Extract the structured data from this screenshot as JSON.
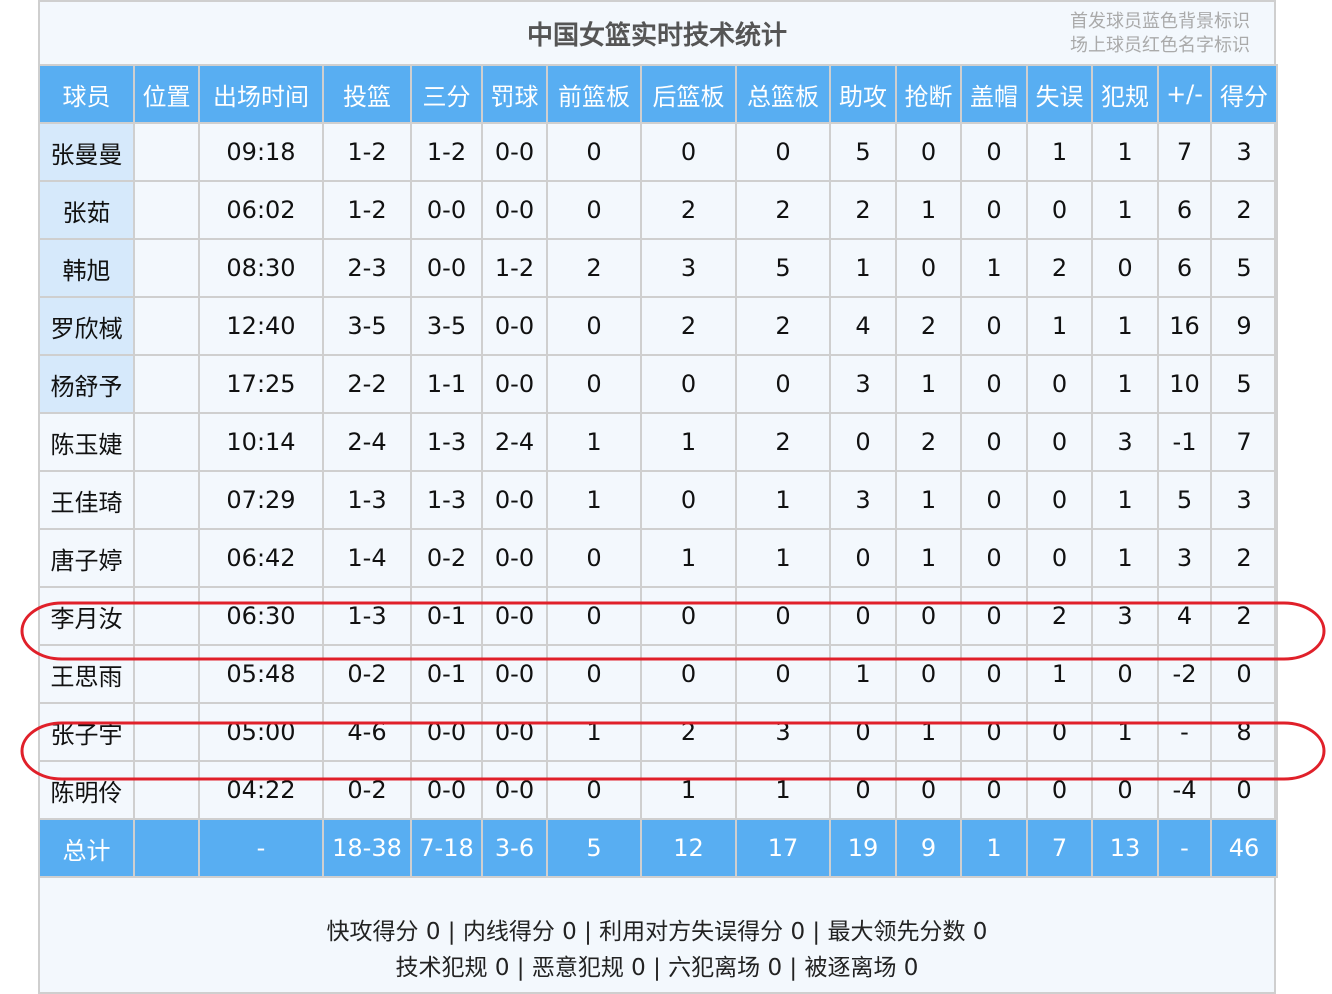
{
  "title": "中国女篮实时技术统计",
  "legend_note": [
    "首发球员蓝色背景标识",
    "场上球员红色名字标识"
  ],
  "colors": {
    "header_bg": "#58aef2",
    "starter_bg": "#d6e9fb",
    "highlight": "#e0202a"
  },
  "columns": [
    "球员",
    "位置",
    "出场时间",
    "投篮",
    "三分",
    "罚球",
    "前篮板",
    "后篮板",
    "总篮板",
    "助攻",
    "抢断",
    "盖帽",
    "失误",
    "犯规",
    "+/-",
    "得分"
  ],
  "rows": [
    {
      "starter": true,
      "cells": [
        "张曼曼",
        "",
        "09:18",
        "1-2",
        "1-2",
        "0-0",
        "0",
        "0",
        "0",
        "5",
        "0",
        "0",
        "1",
        "1",
        "7",
        "3"
      ]
    },
    {
      "starter": true,
      "cells": [
        "张茹",
        "",
        "06:02",
        "1-2",
        "0-0",
        "0-0",
        "0",
        "2",
        "2",
        "2",
        "1",
        "0",
        "0",
        "1",
        "6",
        "2"
      ]
    },
    {
      "starter": true,
      "cells": [
        "韩旭",
        "",
        "08:30",
        "2-3",
        "0-0",
        "1-2",
        "2",
        "3",
        "5",
        "1",
        "0",
        "1",
        "2",
        "0",
        "6",
        "5"
      ]
    },
    {
      "starter": true,
      "cells": [
        "罗欣棫",
        "",
        "12:40",
        "3-5",
        "3-5",
        "0-0",
        "0",
        "2",
        "2",
        "4",
        "2",
        "0",
        "1",
        "1",
        "16",
        "9"
      ]
    },
    {
      "starter": true,
      "cells": [
        "杨舒予",
        "",
        "17:25",
        "2-2",
        "1-1",
        "0-0",
        "0",
        "0",
        "0",
        "3",
        "1",
        "0",
        "0",
        "1",
        "10",
        "5"
      ]
    },
    {
      "starter": false,
      "cells": [
        "陈玉婕",
        "",
        "10:14",
        "2-4",
        "1-3",
        "2-4",
        "1",
        "1",
        "2",
        "0",
        "2",
        "0",
        "0",
        "3",
        "-1",
        "7"
      ]
    },
    {
      "starter": false,
      "cells": [
        "王佳琦",
        "",
        "07:29",
        "1-3",
        "1-3",
        "0-0",
        "1",
        "0",
        "1",
        "3",
        "1",
        "0",
        "0",
        "1",
        "5",
        "3"
      ]
    },
    {
      "starter": false,
      "cells": [
        "唐子婷",
        "",
        "06:42",
        "1-4",
        "0-2",
        "0-0",
        "0",
        "1",
        "1",
        "0",
        "1",
        "0",
        "0",
        "1",
        "3",
        "2"
      ]
    },
    {
      "starter": false,
      "highlighted": true,
      "cells": [
        "李月汝",
        "",
        "06:30",
        "1-3",
        "0-1",
        "0-0",
        "0",
        "0",
        "0",
        "0",
        "0",
        "0",
        "2",
        "3",
        "4",
        "2"
      ]
    },
    {
      "starter": false,
      "cells": [
        "王思雨",
        "",
        "05:48",
        "0-2",
        "0-1",
        "0-0",
        "0",
        "0",
        "0",
        "1",
        "0",
        "0",
        "1",
        "0",
        "-2",
        "0"
      ]
    },
    {
      "starter": false,
      "highlighted": true,
      "cells": [
        "张子宇",
        "",
        "05:00",
        "4-6",
        "0-0",
        "0-0",
        "1",
        "2",
        "3",
        "0",
        "1",
        "0",
        "0",
        "1",
        "-",
        "8"
      ]
    },
    {
      "starter": false,
      "cells": [
        "陈明伶",
        "",
        "04:22",
        "0-2",
        "0-0",
        "0-0",
        "0",
        "1",
        "1",
        "0",
        "0",
        "0",
        "0",
        "0",
        "-4",
        "0"
      ]
    }
  ],
  "total": [
    "总计",
    "",
    "-",
    "18-38",
    "7-18",
    "3-6",
    "5",
    "12",
    "17",
    "19",
    "9",
    "1",
    "7",
    "13",
    "-",
    "46"
  ],
  "footer": [
    "快攻得分 0 | 内线得分 0 | 利用对方失误得分 0 | 最大领先分数 0",
    "技术犯规 0 | 恶意犯规 0 | 六犯离场 0 | 被逐离场 0"
  ]
}
